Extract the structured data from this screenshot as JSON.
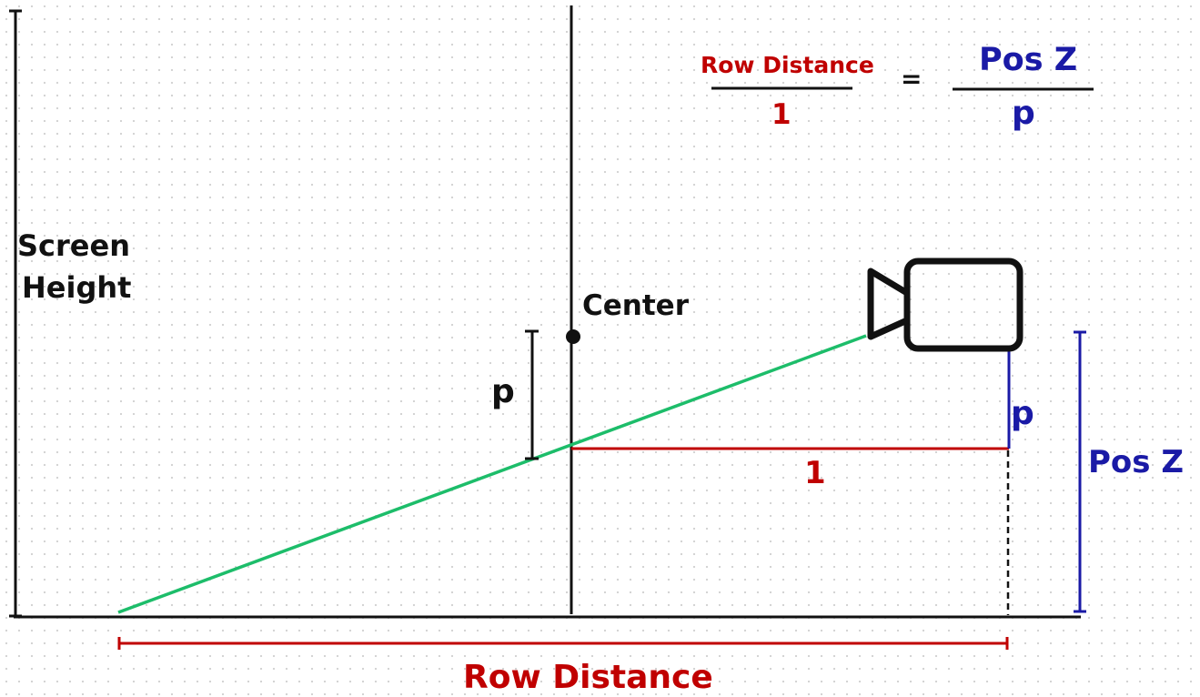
{
  "labels": {
    "screen_height_line1": "Screen",
    "screen_height_line2": "Height",
    "center": "Center",
    "p_left": "p",
    "p_right": "p",
    "one_segment": "1",
    "pos_z": "Pos Z",
    "row_distance": "Row Distance"
  },
  "equation": {
    "left_numerator": "Row Distance",
    "left_denominator": "1",
    "equals": "=",
    "right_numerator": "Pos Z",
    "right_denominator": "p"
  },
  "colors": {
    "axis": "#111111",
    "ray": "#1dbd6a",
    "red": "#c00000",
    "blue": "#1a1aa6"
  },
  "icons": [
    "camera-icon"
  ]
}
